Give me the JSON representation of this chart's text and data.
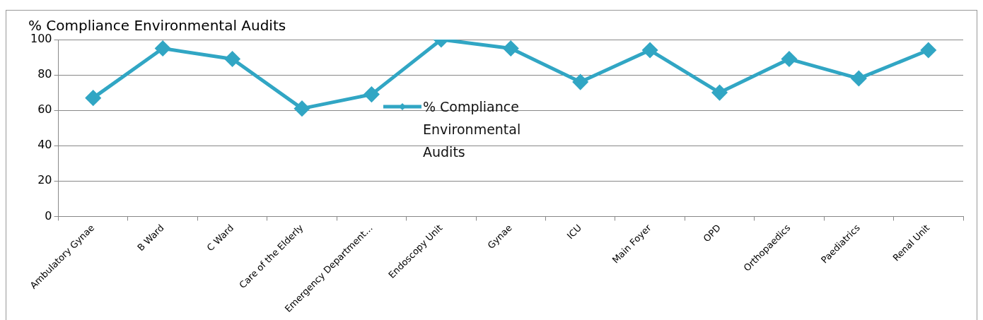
{
  "chart_data": {
    "type": "line",
    "title": "% Compliance Environmental Audits",
    "categories": [
      "Ambulatory Gynae",
      "B Ward",
      "C Ward",
      "Care of the Elderly",
      "Emergency Department…",
      "Endoscopy Unit",
      "Gynae",
      "ICU",
      "Main Foyer",
      "OPD",
      "Orthopaedics",
      "Paediatrics",
      "Renal Unit"
    ],
    "series": [
      {
        "name": "% Compliance Environmental Audits",
        "color": "#31a6c4",
        "values": [
          67,
          95,
          89,
          61,
          69,
          100,
          95,
          76,
          94,
          70,
          89,
          78,
          94
        ]
      }
    ],
    "ylim": [
      0,
      100
    ],
    "yticks": [
      0,
      20,
      40,
      60,
      80,
      100
    ],
    "grid": "y",
    "legend": "center",
    "marker": "diamond",
    "line_style": "solid"
  }
}
